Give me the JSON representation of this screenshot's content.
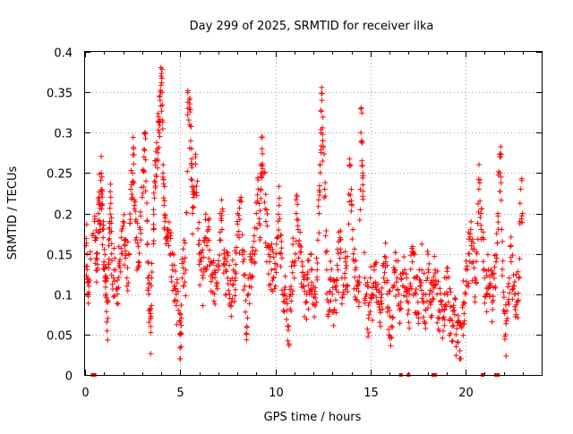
{
  "chart_data": {
    "type": "scatter",
    "title": "Day 299 of 2025, SRMTID for receiver ilka",
    "xlabel": "GPS time / hours",
    "ylabel": "SRMTID / TECUs",
    "xlim": [
      0,
      24
    ],
    "ylim": [
      0,
      0.4
    ],
    "xticks": [
      0,
      5,
      10,
      15,
      20
    ],
    "yticks": [
      0,
      0.05,
      0.1,
      0.15,
      0.2,
      0.25,
      0.3,
      0.35,
      0.4
    ],
    "xtick_labels": [
      "0",
      "5",
      "10",
      "15",
      "20"
    ],
    "ytick_labels": [
      "0",
      "0.05",
      "0.1",
      "0.15",
      "0.2",
      "0.25",
      "0.3",
      "0.35",
      "0.4"
    ],
    "grid": true,
    "marker": "+",
    "series_color": "#ff0000",
    "zero_markers_x": [
      0.4,
      0.5,
      16.6,
      17.0,
      18.3,
      18.4,
      20.9,
      21.6,
      21.7
    ],
    "series": [
      {
        "name": "SRMTID",
        "points": [
          [
            0.05,
            0.16
          ],
          [
            0.1,
            0.15
          ],
          [
            0.15,
            0.12
          ],
          [
            0.2,
            0.11
          ],
          [
            0.5,
            0.19
          ],
          [
            0.55,
            0.17
          ],
          [
            0.6,
            0.15
          ],
          [
            0.65,
            0.13
          ],
          [
            0.7,
            0.2
          ],
          [
            0.75,
            0.22
          ],
          [
            0.8,
            0.18
          ],
          [
            0.85,
            0.25
          ],
          [
            0.9,
            0.21
          ],
          [
            0.95,
            0.17
          ],
          [
            1.0,
            0.14
          ],
          [
            1.05,
            0.12
          ],
          [
            1.1,
            0.1
          ],
          [
            1.15,
            0.09
          ],
          [
            1.2,
            0.07
          ],
          [
            1.25,
            0.16
          ],
          [
            1.3,
            0.19
          ],
          [
            1.35,
            0.22
          ],
          [
            1.4,
            0.15
          ],
          [
            1.5,
            0.12
          ],
          [
            1.6,
            0.13
          ],
          [
            1.7,
            0.1
          ],
          [
            1.8,
            0.14
          ],
          [
            1.9,
            0.17
          ],
          [
            2.0,
            0.19
          ],
          [
            2.1,
            0.16
          ],
          [
            2.2,
            0.12
          ],
          [
            2.3,
            0.15
          ],
          [
            2.4,
            0.23
          ],
          [
            2.5,
            0.25
          ],
          [
            2.55,
            0.28
          ],
          [
            2.6,
            0.21
          ],
          [
            2.7,
            0.17
          ],
          [
            2.8,
            0.14
          ],
          [
            2.9,
            0.18
          ],
          [
            3.0,
            0.22
          ],
          [
            3.1,
            0.27
          ],
          [
            3.15,
            0.3
          ],
          [
            3.2,
            0.24
          ],
          [
            3.3,
            0.14
          ],
          [
            3.35,
            0.1
          ],
          [
            3.4,
            0.08
          ],
          [
            3.45,
            0.06
          ],
          [
            3.5,
            0.12
          ],
          [
            3.6,
            0.18
          ],
          [
            3.65,
            0.24
          ],
          [
            3.7,
            0.26
          ],
          [
            3.8,
            0.28
          ],
          [
            3.85,
            0.32
          ],
          [
            3.9,
            0.3
          ],
          [
            3.95,
            0.34
          ],
          [
            4.0,
            0.37
          ],
          [
            4.05,
            0.35
          ],
          [
            4.1,
            0.25
          ],
          [
            4.15,
            0.21
          ],
          [
            4.2,
            0.19
          ],
          [
            4.3,
            0.17
          ],
          [
            4.4,
            0.16
          ],
          [
            4.5,
            0.15
          ],
          [
            4.6,
            0.13
          ],
          [
            4.7,
            0.11
          ],
          [
            4.8,
            0.1
          ],
          [
            4.9,
            0.08
          ],
          [
            5.0,
            0.05
          ],
          [
            5.05,
            0.035
          ],
          [
            5.1,
            0.12
          ],
          [
            5.2,
            0.14
          ],
          [
            5.3,
            0.13
          ],
          [
            5.4,
            0.33
          ],
          [
            5.5,
            0.31
          ],
          [
            5.55,
            0.29
          ],
          [
            5.6,
            0.26
          ],
          [
            5.65,
            0.2
          ],
          [
            5.7,
            0.22
          ],
          [
            5.8,
            0.27
          ],
          [
            5.9,
            0.24
          ],
          [
            6.0,
            0.15
          ],
          [
            6.1,
            0.13
          ],
          [
            6.2,
            0.12
          ],
          [
            6.3,
            0.17
          ],
          [
            6.4,
            0.16
          ],
          [
            6.5,
            0.18
          ],
          [
            6.6,
            0.14
          ],
          [
            6.7,
            0.12
          ],
          [
            6.8,
            0.1
          ],
          [
            6.9,
            0.11
          ],
          [
            7.0,
            0.13
          ],
          [
            7.1,
            0.2
          ],
          [
            7.2,
            0.18
          ],
          [
            7.3,
            0.15
          ],
          [
            7.4,
            0.13
          ],
          [
            7.5,
            0.12
          ],
          [
            7.6,
            0.1
          ],
          [
            7.7,
            0.09
          ],
          [
            7.8,
            0.13
          ],
          [
            7.9,
            0.12
          ],
          [
            8.0,
            0.19
          ],
          [
            8.1,
            0.17
          ],
          [
            8.2,
            0.22
          ],
          [
            8.3,
            0.14
          ],
          [
            8.4,
            0.11
          ],
          [
            8.5,
            0.06
          ],
          [
            8.6,
            0.1
          ],
          [
            8.7,
            0.12
          ],
          [
            8.8,
            0.15
          ],
          [
            8.9,
            0.14
          ],
          [
            9.0,
            0.2
          ],
          [
            9.1,
            0.23
          ],
          [
            9.2,
            0.17
          ],
          [
            9.25,
            0.26
          ],
          [
            9.3,
            0.28
          ],
          [
            9.4,
            0.25
          ],
          [
            9.5,
            0.19
          ],
          [
            9.6,
            0.16
          ],
          [
            9.7,
            0.14
          ],
          [
            9.8,
            0.13
          ],
          [
            9.9,
            0.12
          ],
          [
            10.0,
            0.11
          ],
          [
            10.1,
            0.17
          ],
          [
            10.2,
            0.21
          ],
          [
            10.3,
            0.15
          ],
          [
            10.4,
            0.1
          ],
          [
            10.5,
            0.09
          ],
          [
            10.6,
            0.08
          ],
          [
            10.7,
            0.06
          ],
          [
            10.8,
            0.1
          ],
          [
            10.9,
            0.14
          ],
          [
            11.0,
            0.12
          ],
          [
            11.1,
            0.2
          ],
          [
            11.2,
            0.18
          ],
          [
            11.3,
            0.16
          ],
          [
            11.4,
            0.14
          ],
          [
            11.5,
            0.11
          ],
          [
            11.6,
            0.09
          ],
          [
            11.7,
            0.12
          ],
          [
            11.8,
            0.1
          ],
          [
            11.9,
            0.13
          ],
          [
            12.0,
            0.11
          ],
          [
            12.1,
            0.1
          ],
          [
            12.2,
            0.13
          ],
          [
            12.3,
            0.2
          ],
          [
            12.35,
            0.26
          ],
          [
            12.4,
            0.3
          ],
          [
            12.45,
            0.34
          ],
          [
            12.5,
            0.29
          ],
          [
            12.6,
            0.23
          ],
          [
            12.7,
            0.13
          ],
          [
            12.8,
            0.09
          ],
          [
            12.9,
            0.12
          ],
          [
            13.0,
            0.1
          ],
          [
            13.1,
            0.08
          ],
          [
            13.2,
            0.11
          ],
          [
            13.3,
            0.13
          ],
          [
            13.4,
            0.17
          ],
          [
            13.5,
            0.12
          ],
          [
            13.6,
            0.1
          ],
          [
            13.7,
            0.14
          ],
          [
            13.8,
            0.11
          ],
          [
            13.9,
            0.26
          ],
          [
            14.0,
            0.23
          ],
          [
            14.1,
            0.15
          ],
          [
            14.2,
            0.13
          ],
          [
            14.3,
            0.11
          ],
          [
            14.4,
            0.09
          ],
          [
            14.5,
            0.3
          ],
          [
            14.55,
            0.29
          ],
          [
            14.6,
            0.25
          ],
          [
            14.7,
            0.12
          ],
          [
            14.8,
            0.1
          ],
          [
            14.9,
            0.07
          ],
          [
            15.0,
            0.12
          ],
          [
            15.1,
            0.1
          ],
          [
            15.2,
            0.13
          ],
          [
            15.3,
            0.11
          ],
          [
            15.4,
            0.09
          ],
          [
            15.5,
            0.08
          ],
          [
            15.6,
            0.1
          ],
          [
            15.7,
            0.12
          ],
          [
            15.8,
            0.14
          ],
          [
            15.9,
            0.1
          ],
          [
            16.0,
            0.08
          ],
          [
            16.1,
            0.06
          ],
          [
            16.2,
            0.11
          ],
          [
            16.3,
            0.13
          ],
          [
            16.4,
            0.12
          ],
          [
            16.5,
            0.1
          ],
          [
            16.6,
            0.09
          ],
          [
            16.7,
            0.11
          ],
          [
            16.8,
            0.13
          ],
          [
            16.9,
            0.12
          ],
          [
            17.0,
            0.08
          ],
          [
            17.1,
            0.11
          ],
          [
            17.2,
            0.14
          ],
          [
            17.3,
            0.12
          ],
          [
            17.4,
            0.1
          ],
          [
            17.5,
            0.09
          ],
          [
            17.6,
            0.11
          ],
          [
            17.7,
            0.13
          ],
          [
            17.8,
            0.1
          ],
          [
            17.9,
            0.08
          ],
          [
            18.0,
            0.12
          ],
          [
            18.1,
            0.1
          ],
          [
            18.2,
            0.09
          ],
          [
            18.3,
            0.11
          ],
          [
            18.4,
            0.13
          ],
          [
            18.5,
            0.1
          ],
          [
            18.6,
            0.08
          ],
          [
            18.7,
            0.09
          ],
          [
            18.8,
            0.07
          ],
          [
            18.9,
            0.1
          ],
          [
            19.0,
            0.12
          ],
          [
            19.1,
            0.09
          ],
          [
            19.2,
            0.07
          ],
          [
            19.3,
            0.06
          ],
          [
            19.4,
            0.08
          ],
          [
            19.5,
            0.05
          ],
          [
            19.6,
            0.04
          ],
          [
            19.7,
            0.03
          ],
          [
            19.8,
            0.06
          ],
          [
            19.9,
            0.09
          ],
          [
            20.0,
            0.1
          ],
          [
            20.1,
            0.13
          ],
          [
            20.2,
            0.15
          ],
          [
            20.3,
            0.16
          ],
          [
            20.4,
            0.14
          ],
          [
            20.5,
            0.12
          ],
          [
            20.6,
            0.15
          ],
          [
            20.7,
            0.23
          ],
          [
            20.8,
            0.2
          ],
          [
            20.9,
            0.17
          ],
          [
            21.0,
            0.12
          ],
          [
            21.1,
            0.1
          ],
          [
            21.2,
            0.13
          ],
          [
            21.3,
            0.11
          ],
          [
            21.4,
            0.09
          ],
          [
            21.5,
            0.12
          ],
          [
            21.6,
            0.14
          ],
          [
            21.7,
            0.2
          ],
          [
            21.8,
            0.25
          ],
          [
            21.85,
            0.27
          ],
          [
            21.9,
            0.18
          ],
          [
            22.0,
            0.08
          ],
          [
            22.1,
            0.05
          ],
          [
            22.2,
            0.07
          ],
          [
            22.3,
            0.12
          ],
          [
            22.4,
            0.14
          ],
          [
            22.5,
            0.11
          ],
          [
            22.6,
            0.1
          ],
          [
            22.7,
            0.09
          ],
          [
            22.8,
            0.12
          ],
          [
            22.9,
            0.23
          ],
          [
            23.0,
            0.2
          ]
        ]
      }
    ]
  }
}
